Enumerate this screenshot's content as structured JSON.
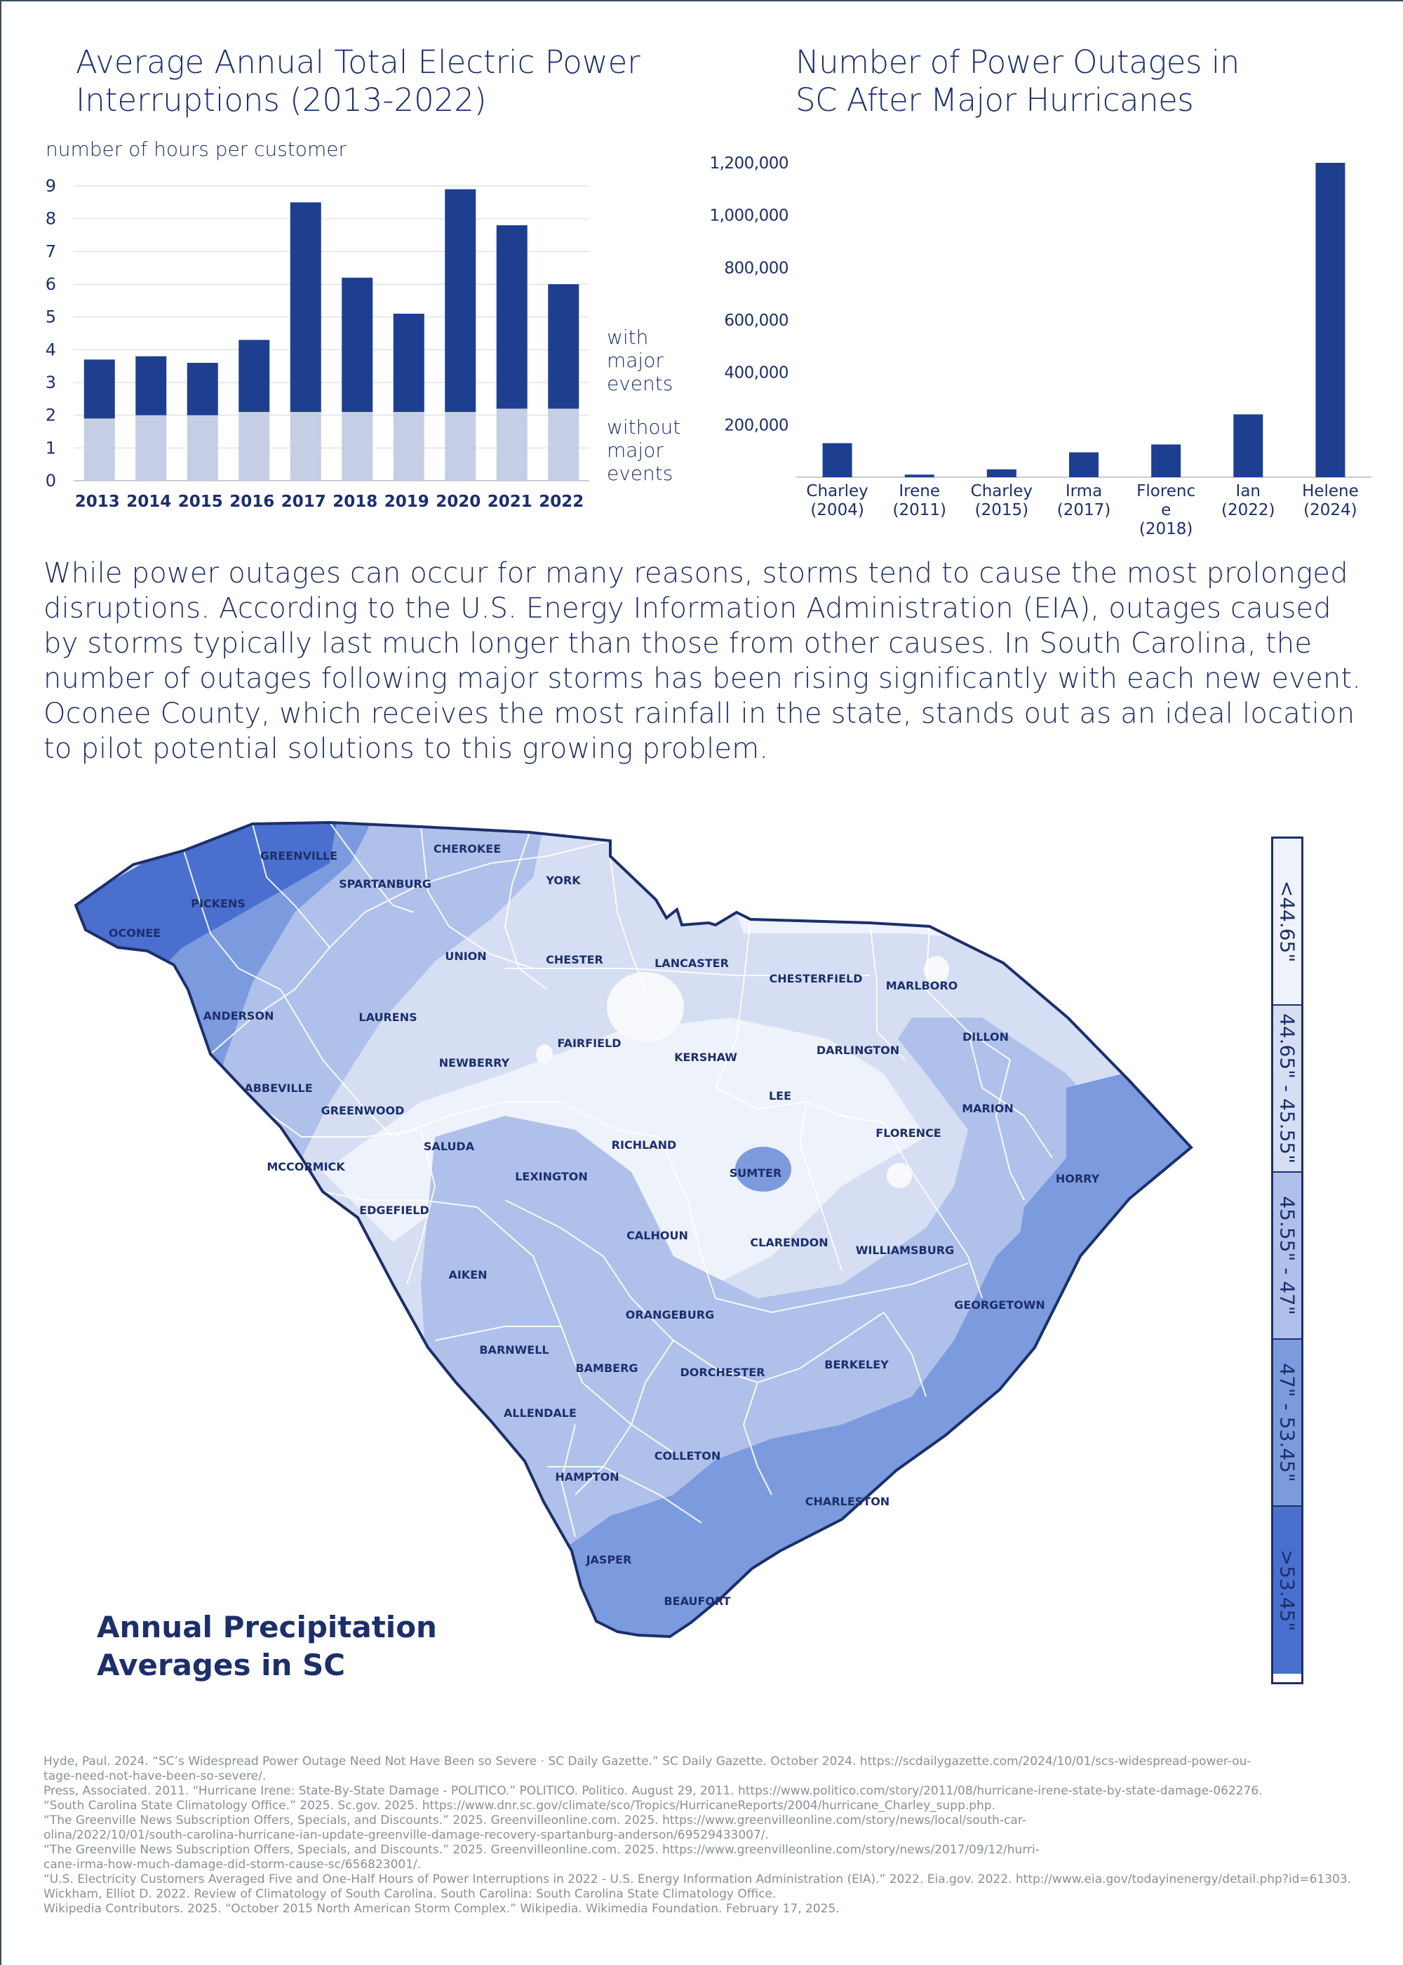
{
  "chart_data": [
    {
      "type": "bar",
      "stacked": true,
      "title": "Average Annual Total Electric Power\nInterruptions (2013-2022)",
      "ylabel": "number of hours per customer",
      "ylim": [
        0,
        9
      ],
      "yticks": [
        "0",
        "1",
        "2",
        "3",
        "4",
        "5",
        "6",
        "7",
        "8",
        "9"
      ],
      "grid": true,
      "categories": [
        "2013",
        "2014",
        "2015",
        "2016",
        "2017",
        "2018",
        "2019",
        "2020",
        "2021",
        "2022"
      ],
      "series": [
        {
          "name": "without major events",
          "color": "#c5cee4",
          "values": [
            1.9,
            2.0,
            2.0,
            2.1,
            2.1,
            2.1,
            2.1,
            2.1,
            2.2,
            2.2
          ]
        },
        {
          "name": "with major events",
          "color": "#1e3f8f",
          "values": [
            1.8,
            1.8,
            1.6,
            2.2,
            6.4,
            4.1,
            3.0,
            6.8,
            5.6,
            3.8
          ]
        }
      ],
      "legend_position": "right"
    },
    {
      "type": "bar",
      "title": "Number of Power Outages in\nSC After Major Hurricanes",
      "ylim": [
        0,
        1200000
      ],
      "yticks": [
        "200,000",
        "400,000",
        "600,000",
        "800,000",
        "1,000,000",
        "1,200,000"
      ],
      "grid": false,
      "categories": [
        [
          "Charley",
          "(2004)"
        ],
        [
          "Irene",
          "(2011)"
        ],
        [
          "Charley",
          "(2015)"
        ],
        [
          "Irma",
          "(2017)"
        ],
        [
          "Florenc",
          "e",
          "(2018)"
        ],
        [
          "Ian",
          "(2022)"
        ],
        [
          "Helene",
          "(2024)"
        ]
      ],
      "values": [
        130000,
        10000,
        30000,
        95000,
        125000,
        240000,
        1200000
      ],
      "color": "#1e3f8f"
    }
  ],
  "paragraph": "While power outages can occur for many reasons, storms tend to cause the most prolonged disruptions. According to the U.S. Energy Information Administration (EIA), outages caused by storms typically last much longer than those from other causes. In South Carolina, the number of outages following major storms has been rising significantly with each new event. Oconee County, which receives the most rainfall in the state, stands out as an ideal location to pilot potential solutions to this growing problem.",
  "map": {
    "title": "Annual Precipitation\nAverages in SC",
    "counties": [
      "GREENVILLE",
      "CHEROKEE",
      "YORK",
      "PICKENS",
      "SPARTANBURG",
      "OCONEE",
      "UNION",
      "CHESTER",
      "LANCASTER",
      "CHESTERFIELD",
      "MARLBORO",
      "ANDERSON",
      "LAURENS",
      "FAIRFIELD",
      "KERSHAW",
      "DARLINGTON",
      "DILLON",
      "NEWBERRY",
      "LEE",
      "MARION",
      "ABBEVILLE",
      "GREENWOOD",
      "SALUDA",
      "RICHLAND",
      "FLORENCE",
      "MCCORMICK",
      "LEXINGTON",
      "SUMTER",
      "HORRY",
      "EDGEFIELD",
      "CALHOUN",
      "CLARENDON",
      "WILLIAMSBURG",
      "AIKEN",
      "ORANGEBURG",
      "GEORGETOWN",
      "BARNWELL",
      "BAMBERG",
      "DORCHESTER",
      "BERKELEY",
      "ALLENDALE",
      "COLLETON",
      "HAMPTON",
      "CHARLESTON",
      "JASPER",
      "BEAUFORT"
    ],
    "legend": [
      {
        "label": "<44.65\"",
        "color": "#eef2fa"
      },
      {
        "label": "44.65\" - 45.55\"",
        "color": "#d5def3"
      },
      {
        "label": "45.55\" - 47\"",
        "color": "#afc1ea"
      },
      {
        "label": "47\" - 53.45\"",
        "color": "#7c9bde"
      },
      {
        "label": ">53.45\"",
        "color": "#4a6fce"
      }
    ]
  },
  "references": [
    "Hyde, Paul. 2024. “SC’s Widespread Power Outage Need Not Have Been so Severe · SC Daily Gazette.” SC Daily Gazette. October 2024. https://scdailygazette.com/2024/10/01/scs-widespread-power-ou-",
    "tage-need-not-have-been-so-severe/.",
    "Press, Associated. 2011. “Hurricane Irene: State-By-State Damage - POLITICO.” POLITICO. Politico. August 29, 2011. https://www.politico.com/story/2011/08/hurricane-irene-state-by-state-damage-062276.",
    "“South Carolina State Climatology Office.” 2025. Sc.gov. 2025. https://www.dnr.sc.gov/climate/sco/Tropics/HurricaneReports/2004/hurricane_Charley_supp.php.",
    "“The Greenville News Subscription Offers, Specials, and Discounts.” 2025. Greenvilleonline.com. 2025. https://www.greenvilleonline.com/story/news/local/south-car-",
    "olina/2022/10/01/south-carolina-hurricane-ian-update-greenville-damage-recovery-spartanburg-anderson/69529433007/.",
    "“The Greenville News Subscription Offers, Specials, and Discounts.” 2025. Greenvilleonline.com. 2025. https://www.greenvilleonline.com/story/news/2017/09/12/hurri-",
    "cane-irma-how-much-damage-did-storm-cause-sc/656823001/.",
    "“U.S. Electricity Customers Averaged Five and One-Half Hours of Power Interruptions in 2022 - U.S. Energy Information Administration (EIA).” 2022. Eia.gov. 2022. http://www.eia.gov/todayinenergy/detail.php?id=61303.",
    "Wickham, Elliot D. 2022. Review of Climatology of South Carolina. South Carolina: South Carolina State Climatology Office.",
    "Wikipedia Contributors. 2025. “October 2015 North American Storm Complex.” Wikipedia. Wikimedia Foundation. February 17, 2025."
  ]
}
